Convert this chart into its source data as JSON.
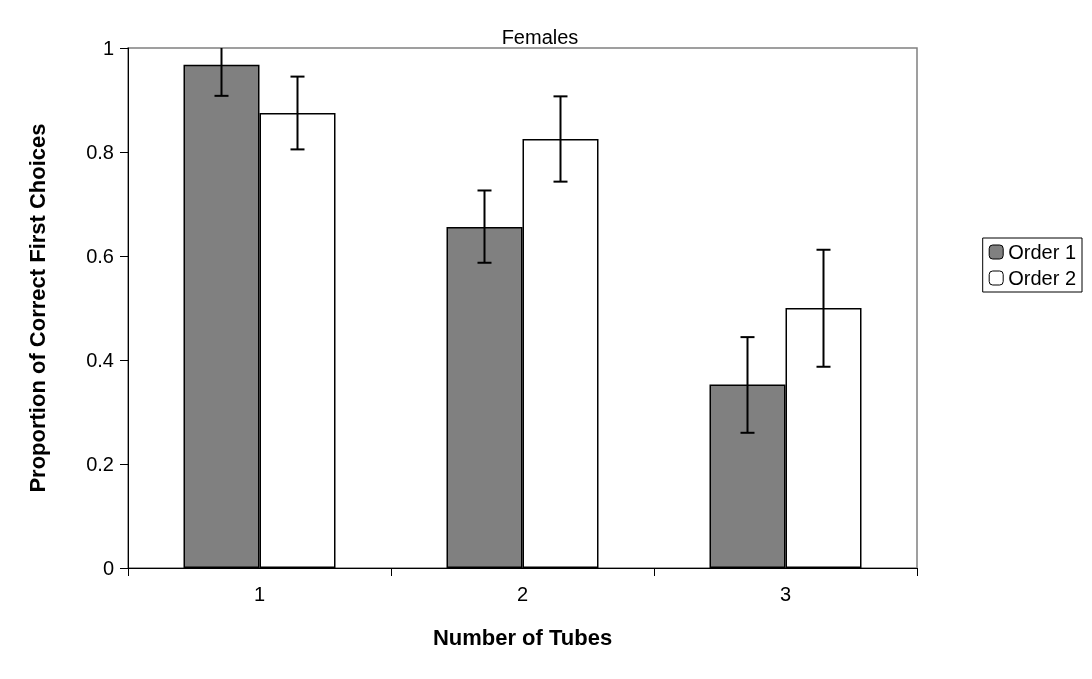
{
  "chart_data": {
    "type": "bar",
    "title": "Females",
    "xlabel": "Number of Tubes",
    "ylabel": "Proportion of Correct First Choices",
    "categories": [
      "1",
      "2",
      "3"
    ],
    "series": [
      {
        "name": "Order 1",
        "color": "#808080",
        "values": [
          0.968,
          0.656,
          0.353
        ],
        "errors": [
          [
            0.908,
            1.0
          ],
          [
            0.587,
            0.726
          ],
          [
            0.26,
            0.444
          ]
        ]
      },
      {
        "name": "Order 2",
        "color": "#ffffff",
        "values": [
          0.875,
          0.825,
          0.5
        ],
        "errors": [
          [
            0.805,
            0.945
          ],
          [
            0.743,
            0.907
          ],
          [
            0.387,
            0.612
          ]
        ]
      }
    ],
    "ylim": [
      0,
      1
    ],
    "yticks": [
      0,
      0.2,
      0.4,
      0.6,
      0.8,
      1
    ],
    "grid": false,
    "legend": "right"
  }
}
